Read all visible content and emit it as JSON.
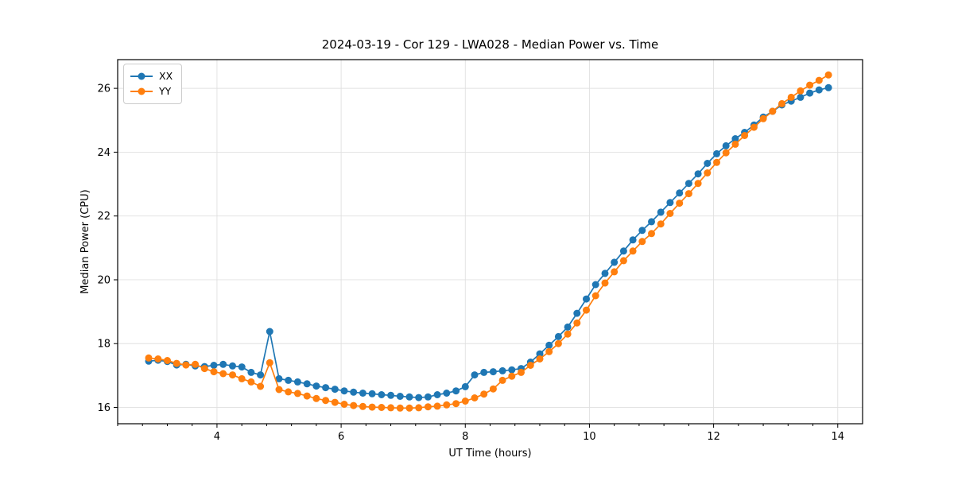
{
  "figure": {
    "background": "#ffffff"
  },
  "chart_data": {
    "type": "line",
    "title": "2024-03-19 - Cor 129 - LWA028 - Median Power vs. Time",
    "xlabel": "UT Time (hours)",
    "ylabel": "Median Power (CPU)",
    "xlim": [
      2.4,
      14.4
    ],
    "ylim": [
      15.49,
      26.9
    ],
    "xticks": [
      4,
      6,
      8,
      10,
      12,
      14
    ],
    "yticks": [
      16,
      18,
      20,
      22,
      24,
      26
    ],
    "x_minor_tick_step": 0.4,
    "grid": true,
    "legend_position": "upper-left",
    "marker": "circle",
    "x": [
      2.9,
      3.05,
      3.2,
      3.35,
      3.5,
      3.65,
      3.8,
      3.95,
      4.1,
      4.25,
      4.4,
      4.55,
      4.7,
      4.85,
      5.0,
      5.15,
      5.3,
      5.45,
      5.6,
      5.75,
      5.9,
      6.05,
      6.2,
      6.35,
      6.5,
      6.65,
      6.8,
      6.95,
      7.1,
      7.25,
      7.4,
      7.55,
      7.7,
      7.85,
      8.0,
      8.15,
      8.3,
      8.45,
      8.6,
      8.75,
      8.9,
      9.05,
      9.2,
      9.35,
      9.5,
      9.65,
      9.8,
      9.95,
      10.1,
      10.25,
      10.4,
      10.55,
      10.7,
      10.85,
      11.0,
      11.15,
      11.3,
      11.45,
      11.6,
      11.75,
      11.9,
      12.05,
      12.2,
      12.35,
      12.5,
      12.65,
      12.8,
      12.95,
      13.1,
      13.25,
      13.4,
      13.55,
      13.7,
      13.85
    ],
    "series": [
      {
        "name": "XX",
        "color": "#1f77b4",
        "values": [
          17.45,
          17.48,
          17.44,
          17.33,
          17.35,
          17.3,
          17.28,
          17.32,
          17.35,
          17.3,
          17.27,
          17.1,
          17.02,
          18.38,
          16.9,
          16.85,
          16.8,
          16.74,
          16.67,
          16.62,
          16.57,
          16.52,
          16.48,
          16.45,
          16.43,
          16.4,
          16.38,
          16.35,
          16.33,
          16.31,
          16.33,
          16.4,
          16.45,
          16.52,
          16.65,
          17.02,
          17.1,
          17.12,
          17.15,
          17.18,
          17.22,
          17.42,
          17.68,
          17.95,
          18.22,
          18.52,
          18.95,
          19.4,
          19.85,
          20.2,
          20.55,
          20.9,
          21.25,
          21.55,
          21.82,
          22.12,
          22.42,
          22.72,
          23.02,
          23.32,
          23.65,
          23.95,
          24.2,
          24.42,
          24.62,
          24.85,
          25.1,
          25.28,
          25.48,
          25.6,
          25.72,
          25.85,
          25.95,
          26.02
        ]
      },
      {
        "name": "YY",
        "color": "#ff7f0e",
        "values": [
          17.55,
          17.52,
          17.47,
          17.38,
          17.33,
          17.35,
          17.22,
          17.12,
          17.06,
          17.02,
          16.9,
          16.8,
          16.66,
          17.4,
          16.56,
          16.49,
          16.44,
          16.36,
          16.28,
          16.22,
          16.16,
          16.1,
          16.06,
          16.03,
          16.01,
          16.0,
          15.99,
          15.98,
          15.98,
          15.99,
          16.02,
          16.04,
          16.08,
          16.12,
          16.2,
          16.3,
          16.42,
          16.58,
          16.85,
          16.98,
          17.1,
          17.32,
          17.52,
          17.75,
          18.0,
          18.3,
          18.65,
          19.05,
          19.5,
          19.9,
          20.25,
          20.6,
          20.9,
          21.2,
          21.45,
          21.75,
          22.08,
          22.4,
          22.7,
          23.02,
          23.35,
          23.68,
          23.98,
          24.25,
          24.52,
          24.78,
          25.05,
          25.28,
          25.52,
          25.72,
          25.92,
          26.1,
          26.25,
          26.42
        ]
      }
    ]
  }
}
